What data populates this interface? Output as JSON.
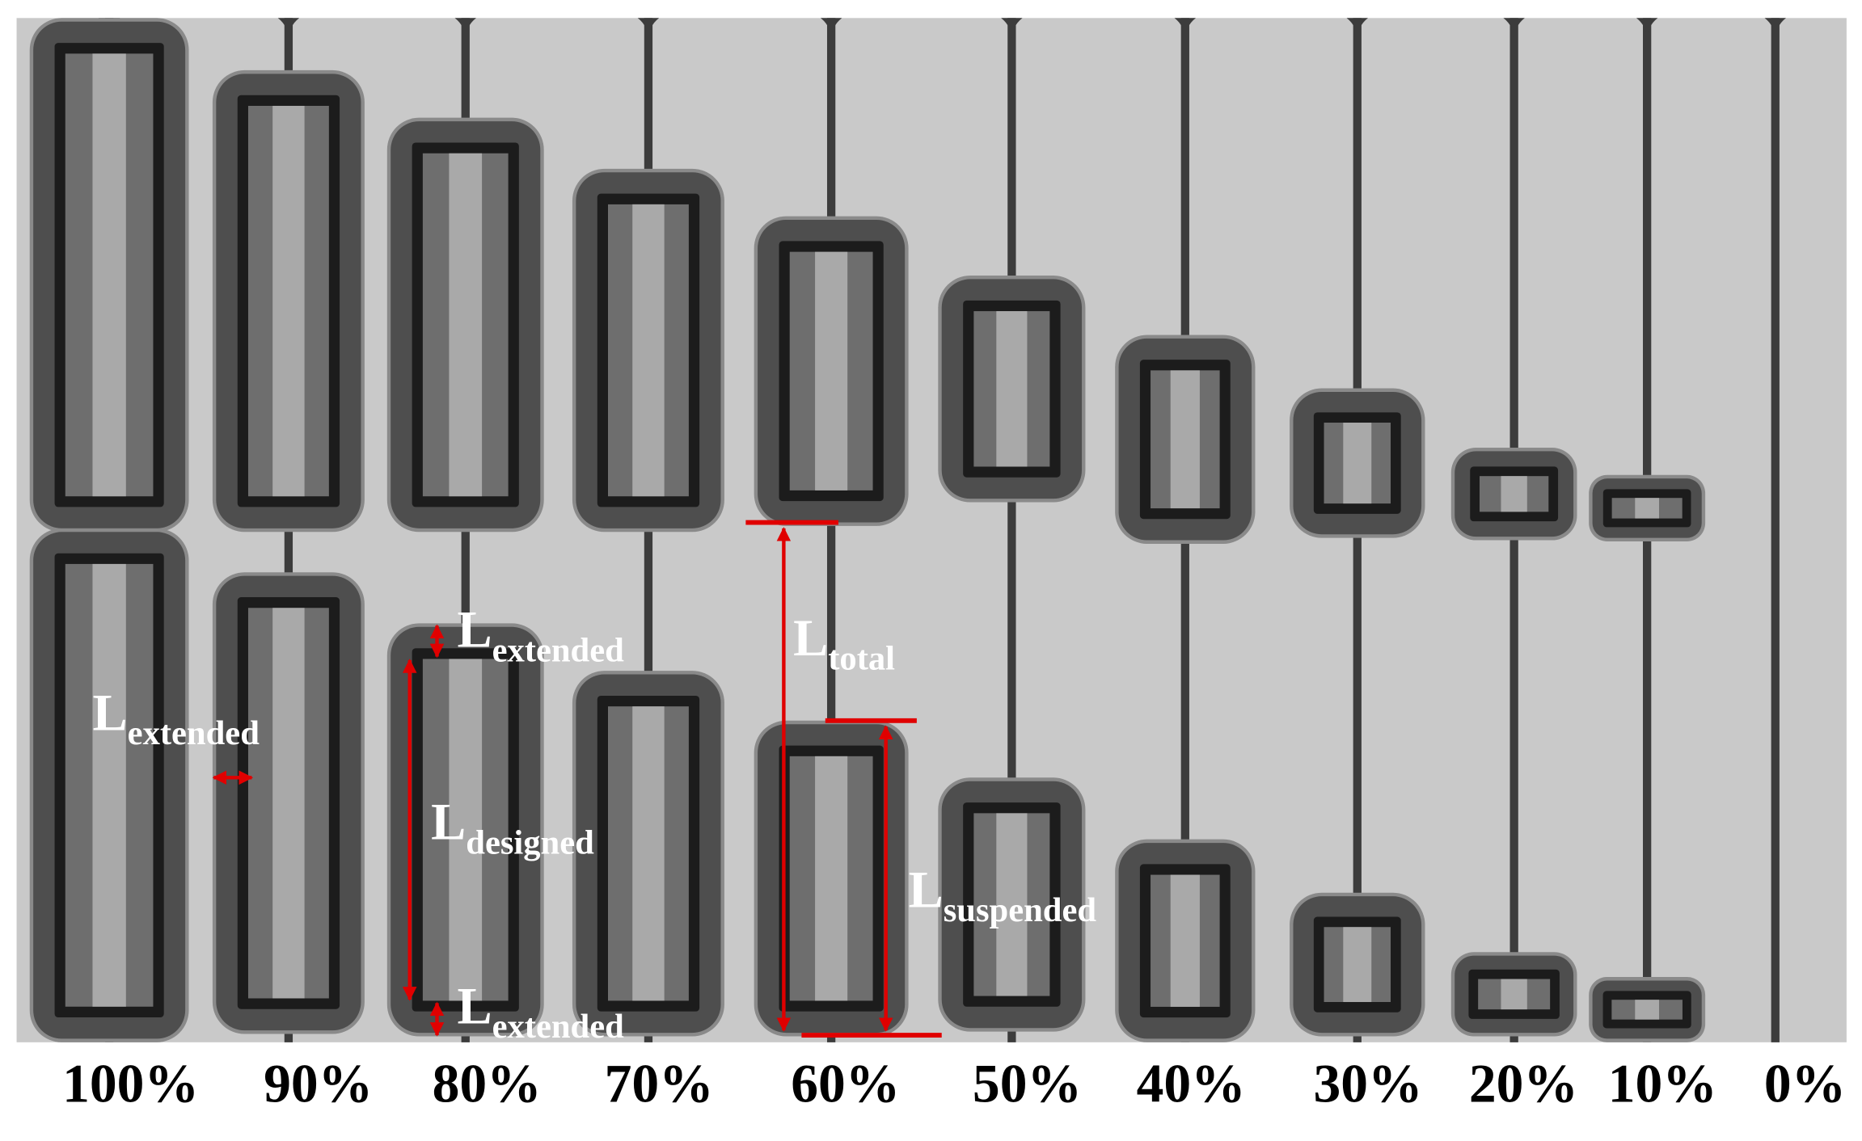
{
  "column_labels": [
    "100%",
    "90%",
    "80%",
    "70%",
    "60%",
    "50%",
    "40%",
    "30%",
    "20%",
    "10%",
    "0%"
  ],
  "annotations": [
    {
      "main": "L",
      "sub": "extended"
    },
    {
      "main": "L",
      "sub": "extended"
    },
    {
      "main": "L",
      "sub": "total"
    },
    {
      "main": "L",
      "sub": "designed"
    },
    {
      "main": "L",
      "sub": "suspended"
    },
    {
      "main": "L",
      "sub": "extended"
    }
  ]
}
